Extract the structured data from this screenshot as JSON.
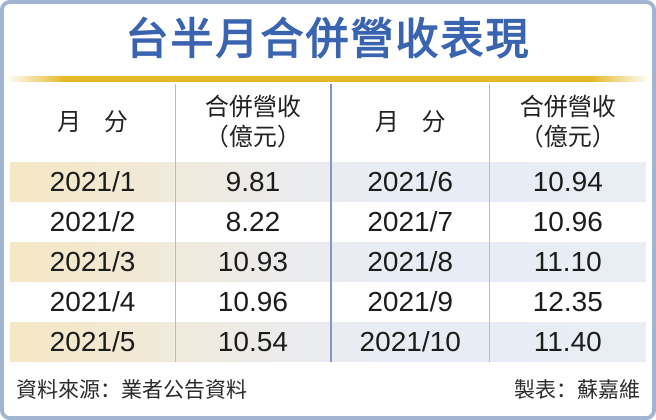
{
  "title": {
    "text": "台半月合併營收表現",
    "color": "#3a64b0"
  },
  "divider": {
    "color": "#e4ba2b"
  },
  "table": {
    "headers": {
      "month_left": "月 分",
      "revenue_left_line1": "合併營收",
      "revenue_left_line2": "（億元）",
      "month_right": "月 分",
      "revenue_right_line1": "合併營收",
      "revenue_right_line2": "（億元）"
    },
    "rows": [
      {
        "month_left": "2021/1",
        "revenue_left": "9.81",
        "month_right": "2021/6",
        "revenue_right": "10.94"
      },
      {
        "month_left": "2021/2",
        "revenue_left": "8.22",
        "month_right": "2021/7",
        "revenue_right": "10.96"
      },
      {
        "month_left": "2021/3",
        "revenue_left": "10.93",
        "month_right": "2021/8",
        "revenue_right": "11.10"
      },
      {
        "month_left": "2021/4",
        "revenue_left": "10.96",
        "month_right": "2021/9",
        "revenue_right": "12.35"
      },
      {
        "month_left": "2021/5",
        "revenue_left": "10.54",
        "month_right": "2021/10",
        "revenue_right": "11.40"
      }
    ],
    "highlight_colors": {
      "left": "#f6e8c4",
      "right": "#e9edf4"
    },
    "divider_colors": {
      "thin": "#bcbcbc",
      "center": "#8894c5"
    },
    "border_color": "#a1b5d2"
  },
  "footer": {
    "source": "資料來源：業者公告資料",
    "credit": "製表：蘇嘉維"
  },
  "chart_data": {
    "type": "table",
    "title": "台半月合併營收表現",
    "columns": [
      "月分",
      "合併營收（億元）",
      "月分",
      "合併營收（億元）"
    ],
    "unit": "億元",
    "categories": [
      "2021/1",
      "2021/2",
      "2021/3",
      "2021/4",
      "2021/5",
      "2021/6",
      "2021/7",
      "2021/8",
      "2021/9",
      "2021/10"
    ],
    "values": [
      9.81,
      8.22,
      10.93,
      10.96,
      10.54,
      10.94,
      10.96,
      11.1,
      12.35,
      11.4
    ]
  }
}
